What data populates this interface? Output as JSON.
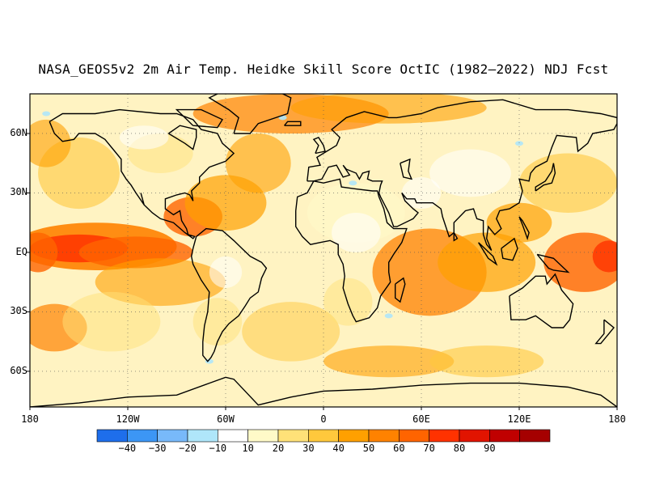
{
  "title": "NASA_GEOS5v2 2m Air Temp. Heidke Skill Score OctIC (1982–2022) NDJ Fcst",
  "map": {
    "lat_range": [
      -78,
      80
    ],
    "lon_range": [
      -180,
      180
    ],
    "lat_ticks": [
      {
        "lat": 60,
        "label": "60N"
      },
      {
        "lat": 30,
        "label": "30N"
      },
      {
        "lat": 0,
        "label": "EQ"
      },
      {
        "lat": -30,
        "label": "30S"
      },
      {
        "lat": -60,
        "label": "60S"
      }
    ],
    "lon_ticks": [
      {
        "lon": -180,
        "label": "180"
      },
      {
        "lon": -120,
        "label": "120W"
      },
      {
        "lon": -60,
        "label": "60W"
      },
      {
        "lon": 0,
        "label": "0"
      },
      {
        "lon": 60,
        "label": "60E"
      },
      {
        "lon": 120,
        "label": "120E"
      },
      {
        "lon": 180,
        "label": "180"
      }
    ]
  },
  "colorbar": {
    "colors": [
      "#1e6eeb",
      "#3c96f5",
      "#78b9fa",
      "#afe6fa",
      "#ffffff",
      "#fffac8",
      "#ffe178",
      "#ffc83c",
      "#ffa000",
      "#ff8200",
      "#ff6400",
      "#ff3200",
      "#e11400",
      "#c00000",
      "#a50000"
    ],
    "labels": [
      "−40",
      "−30",
      "−20",
      "−10",
      "10",
      "20",
      "30",
      "40",
      "50",
      "60",
      "70",
      "80",
      "90"
    ]
  }
}
